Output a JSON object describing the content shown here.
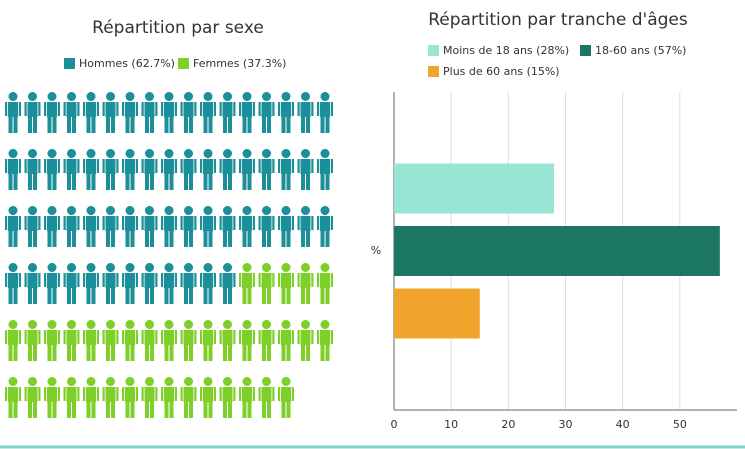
{
  "chart_data": [
    {
      "type": "pictogram",
      "title": "Répartition par sexe",
      "series": [
        {
          "name": "Hommes (62.7%)",
          "color": "#1b8f9a",
          "values": [
            62.7
          ]
        },
        {
          "name": "Femmes (37.3%)",
          "color": "#7fcf2a",
          "values": [
            37.3
          ]
        }
      ]
    },
    {
      "type": "hbar",
      "title": "Répartition par tranche d'âges",
      "categories": [
        "%"
      ],
      "series": [
        {
          "name": "Moins de 18 ans (28%)",
          "color": "#98e5d4",
          "values": [
            28
          ]
        },
        {
          "name": "18-60 ans (57%)",
          "color": "#1b7664",
          "values": [
            57
          ]
        },
        {
          "name": "Plus de 60 ans (15%)",
          "color": "#f0a42c",
          "values": [
            15
          ]
        }
      ],
      "xlim": [
        0,
        60
      ],
      "xticks": [
        0,
        10,
        20,
        30,
        40,
        50
      ],
      "grid": true
    }
  ]
}
